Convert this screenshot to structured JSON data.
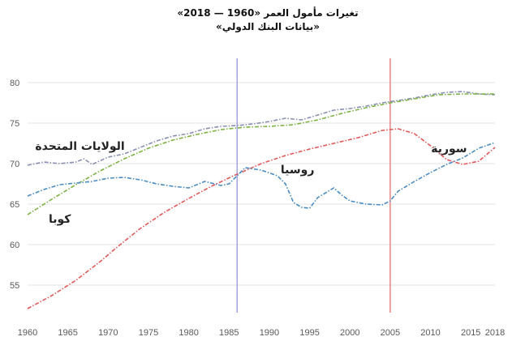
{
  "header": {
    "title": "تغيرات مأمول العمر «1960 — 2018»",
    "subtitle": "«بيانات البنك الدولي»"
  },
  "chart_data": {
    "type": "line",
    "title": "تغيرات مأمول العمر «1960 — 2018»",
    "subtitle": "«بيانات البنك الدولي»",
    "xlim": [
      1960,
      2018
    ],
    "ylim": [
      51,
      83
    ],
    "x_ticks": [
      1960,
      1965,
      1970,
      1975,
      1980,
      1985,
      1990,
      1995,
      2000,
      2005,
      2010,
      2015,
      2018
    ],
    "y_ticks": [
      55,
      60,
      65,
      70,
      75,
      80
    ],
    "grid": "horizontal",
    "reference_lines": [
      1986,
      2005
    ],
    "series": [
      {
        "name": "الولايات المتحدة",
        "color": "#8a8fb5",
        "x": [
          1960,
          1962,
          1964,
          1966,
          1967,
          1968,
          1970,
          1972,
          1974,
          1976,
          1978,
          1980,
          1982,
          1984,
          1986,
          1988,
          1990,
          1992,
          1994,
          1996,
          1998,
          2000,
          2002,
          2004,
          2006,
          2008,
          2010,
          2012,
          2014,
          2016,
          2018
        ],
        "values": [
          69.8,
          70.2,
          70.0,
          70.2,
          70.6,
          69.9,
          70.8,
          71.2,
          72.0,
          72.8,
          73.4,
          73.7,
          74.3,
          74.6,
          74.7,
          74.9,
          75.2,
          75.6,
          75.4,
          76.0,
          76.6,
          76.8,
          77.1,
          77.5,
          77.8,
          78.1,
          78.5,
          78.8,
          78.9,
          78.6,
          78.5
        ]
      },
      {
        "name": "كوبا",
        "color": "#7cb342",
        "x": [
          1960,
          1963,
          1966,
          1969,
          1972,
          1975,
          1978,
          1981,
          1984,
          1987,
          1990,
          1993,
          1996,
          1999,
          2002,
          2005,
          2008,
          2011,
          2014,
          2018
        ],
        "values": [
          63.7,
          65.6,
          67.4,
          69.1,
          70.6,
          71.9,
          72.9,
          73.6,
          74.2,
          74.5,
          74.6,
          74.8,
          75.4,
          76.2,
          76.9,
          77.5,
          78.0,
          78.5,
          78.6,
          78.6
        ]
      },
      {
        "name": "سورية",
        "color": "#e05a5a",
        "x": [
          1960,
          1963,
          1966,
          1969,
          1971,
          1974,
          1977,
          1980,
          1983,
          1986,
          1989,
          1992,
          1995,
          1998,
          2001,
          2004,
          2006,
          2008,
          2010,
          2012,
          2014,
          2016,
          2018
        ],
        "values": [
          52.1,
          53.7,
          55.6,
          57.9,
          59.6,
          62.0,
          64.0,
          65.7,
          67.3,
          68.7,
          70.0,
          71.0,
          71.8,
          72.5,
          73.2,
          74.1,
          74.3,
          73.7,
          72.2,
          70.5,
          69.9,
          70.3,
          72.0
        ]
      },
      {
        "name": "روسيا",
        "color": "#4a8cc4",
        "x": [
          1960,
          1962,
          1964,
          1966,
          1968,
          1970,
          1972,
          1974,
          1976,
          1978,
          1980,
          1982,
          1984,
          1985,
          1987,
          1989,
          1991,
          1992,
          1993,
          1994,
          1995,
          1996,
          1998,
          1999,
          2000,
          2002,
          2004,
          2005,
          2006,
          2008,
          2010,
          2012,
          2014,
          2016,
          2018
        ],
        "values": [
          66.0,
          66.8,
          67.4,
          67.6,
          67.8,
          68.2,
          68.3,
          68.0,
          67.5,
          67.2,
          67.0,
          67.8,
          67.3,
          67.5,
          69.5,
          69.2,
          68.5,
          67.5,
          65.2,
          64.6,
          64.5,
          65.8,
          67.0,
          66.1,
          65.4,
          65.0,
          64.9,
          65.4,
          66.6,
          67.8,
          68.9,
          69.9,
          70.7,
          71.9,
          72.6
        ]
      }
    ],
    "series_labels": [
      {
        "name": "الولايات المتحدة",
        "anchor_x": 1966.5,
        "anchor_y": 71.7
      },
      {
        "name": "روسيا",
        "anchor_x": 1993.5,
        "anchor_y": 68.8
      },
      {
        "name": "سورية",
        "anchor_x": 2012.3,
        "anchor_y": 71.4
      },
      {
        "name": "كوبا",
        "anchor_x": 1964.0,
        "anchor_y": 62.7
      }
    ]
  }
}
